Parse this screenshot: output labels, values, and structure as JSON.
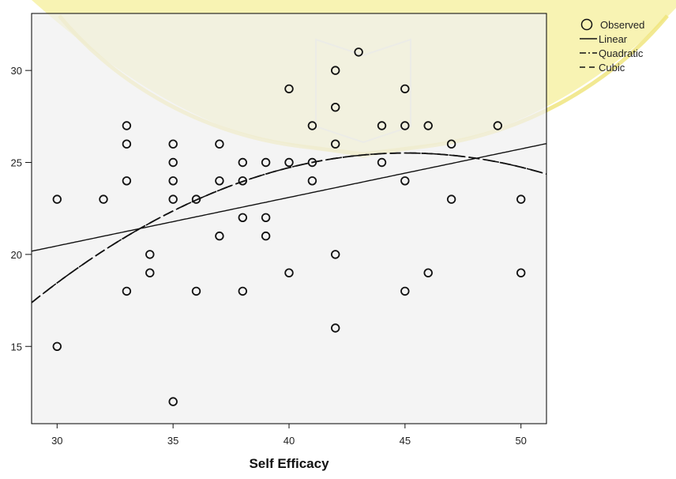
{
  "colors": {
    "plot_bg": "#f0f0f0",
    "watermark": "#f6ef9a",
    "ink": "#111111"
  },
  "chart_data": {
    "type": "scatter",
    "title": "",
    "xlabel": "Self Efficacy",
    "ylabel": "",
    "xlim": [
      28.9,
      51.1
    ],
    "ylim": [
      10.8,
      33.1
    ],
    "xticks": [
      30,
      35,
      40,
      45,
      50
    ],
    "yticks": [
      15,
      20,
      25,
      30
    ],
    "grid": false,
    "legend_position": "top-right",
    "legend": [
      {
        "label": "Observed",
        "kind": "marker"
      },
      {
        "label": "Linear",
        "kind": "solid"
      },
      {
        "label": "Quadratic",
        "kind": "dashdot"
      },
      {
        "label": "Cubic",
        "kind": "dashed"
      }
    ],
    "observed": [
      [
        30,
        23
      ],
      [
        30,
        15
      ],
      [
        32,
        23
      ],
      [
        33,
        27
      ],
      [
        33,
        26
      ],
      [
        33,
        24
      ],
      [
        33,
        18
      ],
      [
        34,
        20
      ],
      [
        34,
        19
      ],
      [
        35,
        26
      ],
      [
        35,
        25
      ],
      [
        35,
        24
      ],
      [
        35,
        23
      ],
      [
        35,
        12
      ],
      [
        36,
        23
      ],
      [
        36,
        18
      ],
      [
        37,
        26
      ],
      [
        37,
        24
      ],
      [
        37,
        21
      ],
      [
        38,
        25
      ],
      [
        38,
        24
      ],
      [
        38,
        22
      ],
      [
        38,
        18
      ],
      [
        39,
        25
      ],
      [
        39,
        22
      ],
      [
        39,
        21
      ],
      [
        40,
        29
      ],
      [
        40,
        25
      ],
      [
        40,
        19
      ],
      [
        41,
        27
      ],
      [
        41,
        25
      ],
      [
        41,
        24
      ],
      [
        42,
        30
      ],
      [
        42,
        28
      ],
      [
        42,
        26
      ],
      [
        42,
        20
      ],
      [
        42,
        16
      ],
      [
        43,
        31
      ],
      [
        44,
        27
      ],
      [
        44,
        25
      ],
      [
        45,
        29
      ],
      [
        45,
        27
      ],
      [
        45,
        24
      ],
      [
        45,
        18
      ],
      [
        46,
        27
      ],
      [
        46,
        19
      ],
      [
        47,
        26
      ],
      [
        47,
        23
      ],
      [
        49,
        27
      ],
      [
        50,
        23
      ],
      [
        50,
        19
      ]
    ],
    "fits": {
      "linear": {
        "name": "Linear",
        "coef": [
          12.56,
          0.2635
        ]
      },
      "quadratic": {
        "name": "Quadratic",
        "coef": [
          -37.79,
          2.8107,
          -0.0312
        ]
      },
      "cubic": {
        "name": "Cubic",
        "coef": [
          -37.79,
          2.8107,
          -0.0312,
          0
        ]
      }
    }
  }
}
